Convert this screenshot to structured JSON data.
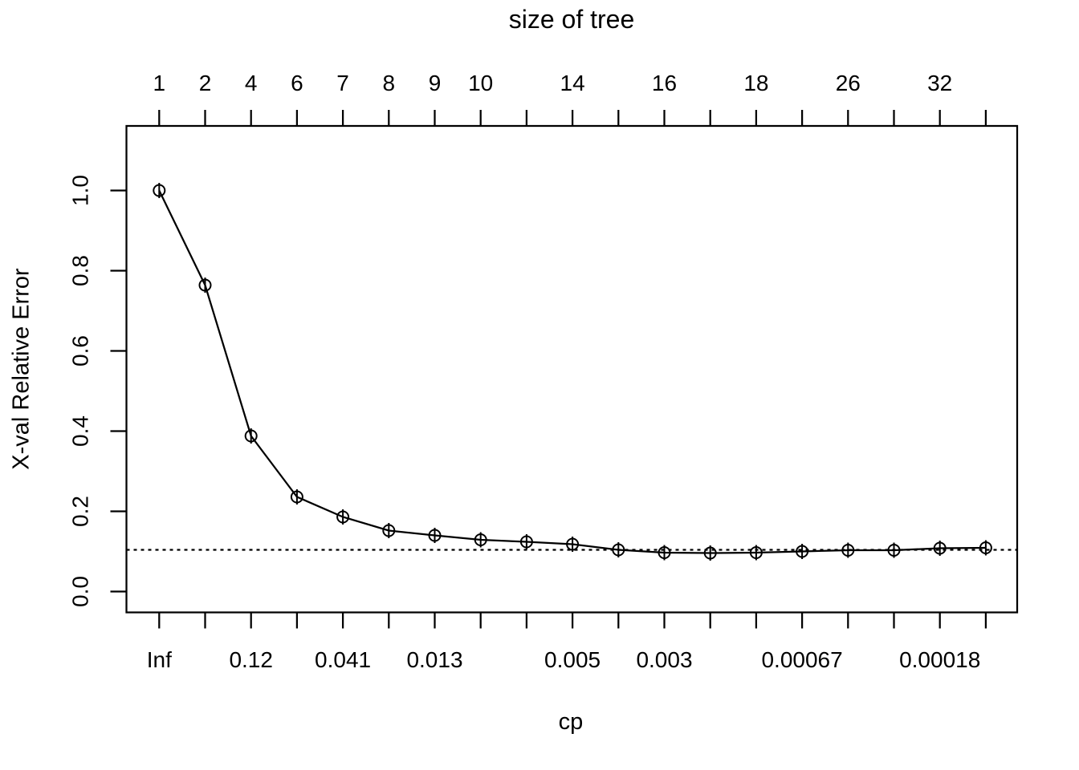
{
  "figure": {
    "background": "#ffffff",
    "foreground": "#000000"
  },
  "chart_data": {
    "type": "line",
    "title": "size of tree",
    "xlabel": "cp",
    "ylabel": "X-val Relative Error",
    "n_points": 19,
    "top_axis": {
      "label": "size of tree",
      "ticks": [
        {
          "index": 0,
          "label": "1"
        },
        {
          "index": 1,
          "label": "2"
        },
        {
          "index": 2,
          "label": "4"
        },
        {
          "index": 3,
          "label": "6"
        },
        {
          "index": 4,
          "label": "7"
        },
        {
          "index": 5,
          "label": "8"
        },
        {
          "index": 6,
          "label": "9"
        },
        {
          "index": 7,
          "label": "10"
        },
        {
          "index": 9,
          "label": "14"
        },
        {
          "index": 11,
          "label": "16"
        },
        {
          "index": 13,
          "label": "18"
        },
        {
          "index": 15,
          "label": "26"
        },
        {
          "index": 17,
          "label": "32"
        }
      ]
    },
    "bottom_axis": {
      "label": "cp",
      "ticks": [
        {
          "index": 0,
          "label": "Inf"
        },
        {
          "index": 2,
          "label": "0.12"
        },
        {
          "index": 4,
          "label": "0.041"
        },
        {
          "index": 6,
          "label": "0.013"
        },
        {
          "index": 9,
          "label": "0.005"
        },
        {
          "index": 11,
          "label": "0.003"
        },
        {
          "index": 14,
          "label": "0.00067"
        },
        {
          "index": 17,
          "label": "0.00018"
        }
      ]
    },
    "y_axis": {
      "tick_values": [
        0.0,
        0.2,
        0.4,
        0.6,
        0.8,
        1.0
      ],
      "tick_labels": [
        "0.0",
        "0.2",
        "0.4",
        "0.6",
        "0.8",
        "1.0"
      ],
      "range": [
        -0.052,
        1.161
      ]
    },
    "series": [
      {
        "name": "X-val relative error",
        "marker": "open-circle-with-vertical-tick",
        "values": [
          1.0,
          0.764,
          0.388,
          0.236,
          0.186,
          0.152,
          0.14,
          0.129,
          0.124,
          0.118,
          0.104,
          0.097,
          0.096,
          0.097,
          0.1,
          0.103,
          0.103,
          0.108,
          0.109
        ]
      }
    ],
    "reference_line": {
      "value": 0.104,
      "style": "dashed"
    },
    "grid": false,
    "legend": null,
    "colors": {
      "line": "#000000",
      "marker": "#000000",
      "background": "#ffffff"
    }
  }
}
